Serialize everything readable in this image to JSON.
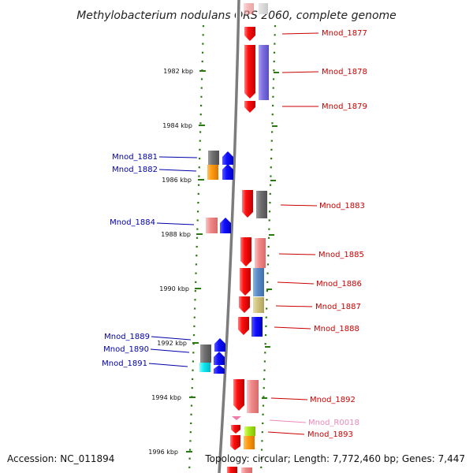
{
  "title": "Methylobacterium nodulans ORS 2060, complete genome",
  "footer": {
    "accession": "Accession: NC_011894",
    "summary": "Topology: circular; Length: 7,772,460 bp; Genes: 7,447"
  },
  "colors": {
    "backbone": "#808080",
    "tick_dots": "#2a7a12",
    "label_right": "#cc0000",
    "label_left": "#0000aa",
    "label_rna": "#ee88bb"
  },
  "ticks": [
    {
      "label": "1982 kbp"
    },
    {
      "label": "1984 kbp"
    },
    {
      "label": "1986 kbp"
    },
    {
      "label": "1988 kbp"
    },
    {
      "label": "1990 kbp"
    },
    {
      "label": "1992 kbp"
    },
    {
      "label": "1994 kbp"
    },
    {
      "label": "1996 kbp"
    }
  ],
  "right_labels": [
    {
      "text": "Mnod_1877"
    },
    {
      "text": "Mnod_1878"
    },
    {
      "text": "Mnod_1879"
    },
    {
      "text": "Mnod_1883"
    },
    {
      "text": "Mnod_1885"
    },
    {
      "text": "Mnod_1886"
    },
    {
      "text": "Mnod_1887"
    },
    {
      "text": "Mnod_1888"
    },
    {
      "text": "Mnod_1892"
    },
    {
      "text": "Mnod_R0018"
    },
    {
      "text": "Mnod_1893"
    }
  ],
  "left_labels": [
    {
      "text": "Mnod_1881"
    },
    {
      "text": "Mnod_1882"
    },
    {
      "text": "Mnod_1884"
    },
    {
      "text": "Mnod_1889"
    },
    {
      "text": "Mnod_1890"
    },
    {
      "text": "Mnod_1891"
    }
  ]
}
